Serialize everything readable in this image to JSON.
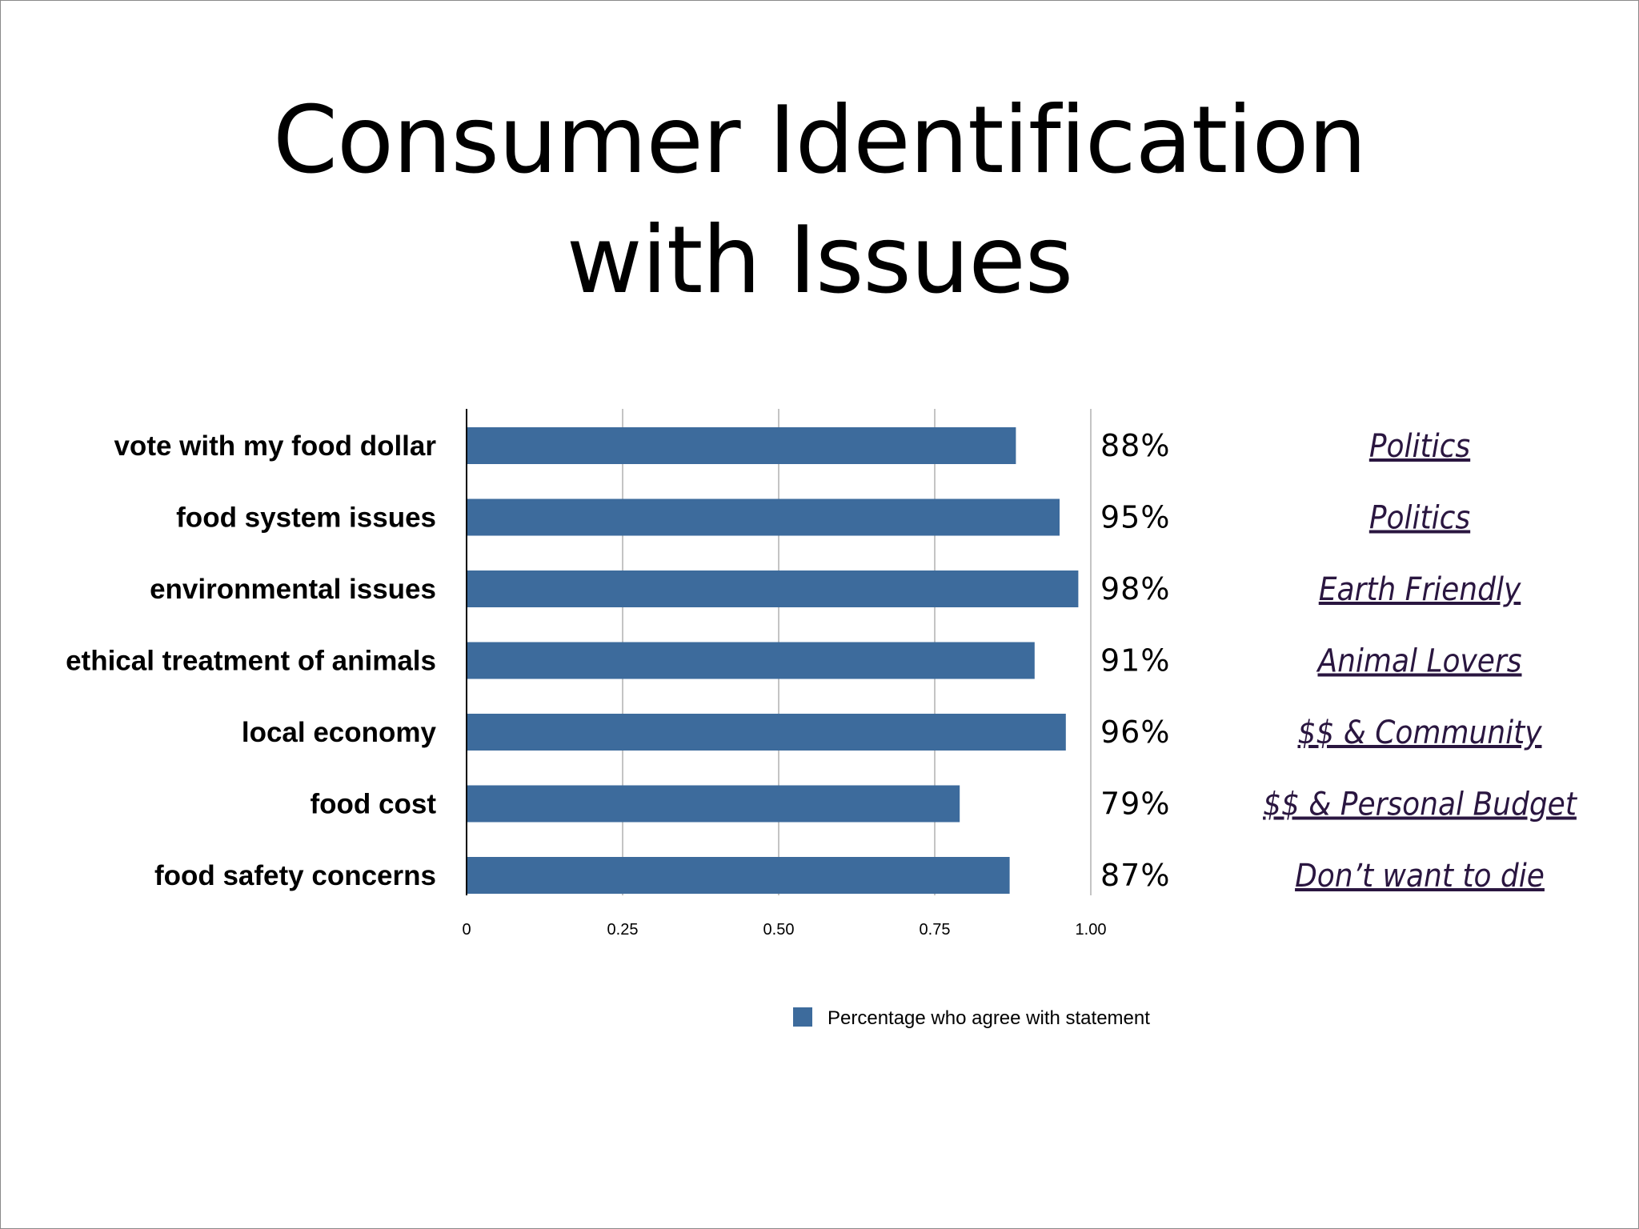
{
  "slide": {
    "title_lines": [
      "Consumer Identification",
      "with Issues"
    ]
  },
  "chart_data": {
    "type": "bar",
    "orientation": "horizontal",
    "categories": [
      "vote with my food dollar",
      "food system issues",
      "environmental issues",
      "ethical treatment of animals",
      "local economy",
      "food cost",
      "food safety concerns"
    ],
    "series": [
      {
        "name": "Percentage who agree with statement",
        "values": [
          0.88,
          0.95,
          0.98,
          0.91,
          0.96,
          0.79,
          0.87
        ],
        "color": "#3d6b9c"
      }
    ],
    "data_labels": [
      "88%",
      "95%",
      "98%",
      "91%",
      "96%",
      "79%",
      "87%"
    ],
    "annotations": [
      "Politics",
      "Politics",
      "Earth Friendly",
      "Animal Lovers",
      "$$ & Community",
      "$$ & Personal Budget",
      "Don’t want to die"
    ],
    "xlim": [
      0,
      1.0
    ],
    "xticks": [
      0,
      0.25,
      0.5,
      0.75,
      1.0
    ],
    "xtick_labels": [
      "0",
      "0.25",
      "0.50",
      "0.75",
      "1.00"
    ],
    "grid": true,
    "legend": "bottom"
  }
}
